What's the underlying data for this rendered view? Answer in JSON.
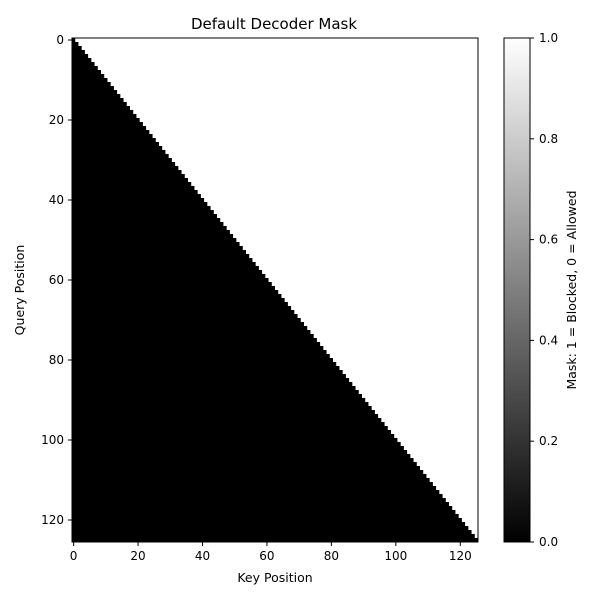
{
  "chart_data": {
    "type": "heatmap",
    "title": "Default Decoder Mask",
    "xlabel": "Key Position",
    "ylabel": "Query Position",
    "size": 126,
    "cell_rule": "value = 1 if key > query else 0",
    "xlim": [
      -0.5,
      125.5
    ],
    "ylim": [
      125.5,
      -0.5
    ],
    "x_ticks": [
      0,
      20,
      40,
      60,
      80,
      100,
      120
    ],
    "y_ticks": [
      0,
      20,
      40,
      60,
      80,
      100,
      120
    ],
    "colormap": "gray",
    "color_low": "#000000",
    "color_high": "#ffffff",
    "colorbar": {
      "label": "Mask: 1 = Blocked, 0 = Allowed",
      "range": [
        0.0,
        1.0
      ],
      "ticks": [
        "0.0",
        "0.2",
        "0.4",
        "0.6",
        "0.8",
        "1.0"
      ]
    }
  }
}
